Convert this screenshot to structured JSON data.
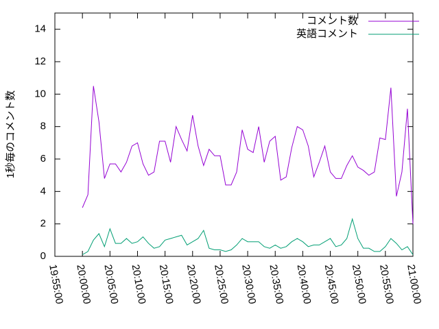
{
  "chart_data": {
    "type": "line",
    "y_label": "1秒毎のコメント数",
    "x": [
      "20:00:00",
      "20:01:00",
      "20:02:00",
      "20:03:00",
      "20:04:00",
      "20:05:00",
      "20:06:00",
      "20:07:00",
      "20:08:00",
      "20:09:00",
      "20:10:00",
      "20:11:00",
      "20:12:00",
      "20:13:00",
      "20:14:00",
      "20:15:00",
      "20:16:00",
      "20:17:00",
      "20:18:00",
      "20:19:00",
      "20:20:00",
      "20:21:00",
      "20:22:00",
      "20:23:00",
      "20:24:00",
      "20:25:00",
      "20:26:00",
      "20:27:00",
      "20:28:00",
      "20:29:00",
      "20:30:00",
      "20:31:00",
      "20:32:00",
      "20:33:00",
      "20:34:00",
      "20:35:00",
      "20:36:00",
      "20:37:00",
      "20:38:00",
      "20:39:00",
      "20:40:00",
      "20:41:00",
      "20:42:00",
      "20:43:00",
      "20:44:00",
      "20:45:00",
      "20:46:00",
      "20:47:00",
      "20:48:00",
      "20:49:00",
      "20:50:00",
      "20:51:00",
      "20:52:00",
      "20:53:00",
      "20:54:00",
      "20:55:00",
      "20:56:00",
      "20:57:00",
      "20:58:00",
      "20:59:00",
      "21:00:00"
    ],
    "series": [
      {
        "name": "コメント数",
        "color": "#9400d3",
        "values": [
          3.0,
          3.8,
          10.5,
          8.3,
          4.8,
          5.7,
          5.7,
          5.2,
          5.8,
          6.8,
          7.0,
          5.7,
          5.0,
          5.2,
          7.1,
          7.1,
          5.8,
          8.0,
          7.2,
          6.5,
          8.7,
          6.8,
          5.6,
          6.6,
          6.2,
          6.2,
          4.4,
          4.4,
          5.2,
          7.8,
          6.6,
          6.4,
          8.0,
          5.8,
          7.1,
          7.4,
          4.7,
          4.9,
          6.7,
          8.0,
          7.8,
          6.8,
          4.9,
          5.8,
          6.8,
          5.2,
          4.8,
          4.8,
          5.6,
          6.2,
          5.5,
          5.3,
          5.0,
          5.2,
          7.3,
          7.2,
          10.4,
          3.7,
          5.2,
          9.1,
          2.0
        ]
      },
      {
        "name": "英語コメント",
        "color": "#009e73",
        "values": [
          0.1,
          0.3,
          1.0,
          1.4,
          0.6,
          1.7,
          0.8,
          0.8,
          1.1,
          0.8,
          0.9,
          1.2,
          0.8,
          0.5,
          0.6,
          1.0,
          1.1,
          1.2,
          1.3,
          0.7,
          0.9,
          1.1,
          1.6,
          0.5,
          0.4,
          0.4,
          0.3,
          0.4,
          0.7,
          1.1,
          0.9,
          0.9,
          0.9,
          0.6,
          0.5,
          0.7,
          0.5,
          0.6,
          0.9,
          1.1,
          0.9,
          0.6,
          0.7,
          0.7,
          0.9,
          1.1,
          0.6,
          0.7,
          1.1,
          2.3,
          1.1,
          0.5,
          0.5,
          0.3,
          0.3,
          0.6,
          1.1,
          0.8,
          0.4,
          0.6,
          0.1
        ]
      }
    ],
    "xlim": [
      "19:55:00",
      "21:00:00"
    ],
    "xticks": [
      "19:55:00",
      "20:00:00",
      "20:05:00",
      "20:10:00",
      "20:15:00",
      "20:20:00",
      "20:25:00",
      "20:30:00",
      "20:35:00",
      "20:40:00",
      "20:45:00",
      "20:50:00",
      "20:55:00",
      "21:00:00"
    ],
    "ylim": [
      0,
      15
    ],
    "yticks": [
      0,
      2,
      4,
      6,
      8,
      10,
      12,
      14
    ],
    "legend": "top-right"
  }
}
